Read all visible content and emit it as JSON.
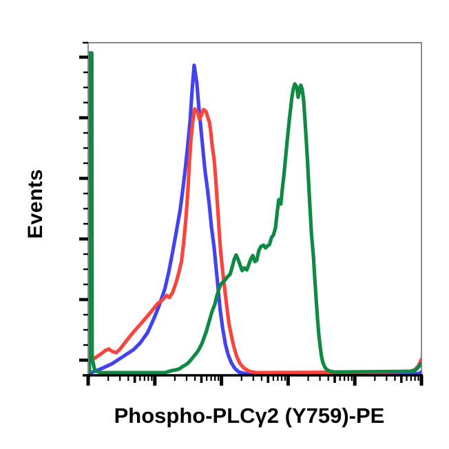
{
  "chart_data": {
    "type": "line",
    "subtype": "flow-cytometry-histogram-overlay",
    "title": "",
    "xlabel": "Phospho-PLCγ2 (Y759)-PE",
    "ylabel": "Events",
    "x_axis": {
      "scale": "log",
      "decades": 5,
      "numeric_labels_visible": false
    },
    "y_axis": {
      "scale": "linear",
      "range": [
        0,
        1
      ],
      "major_ticks": 6,
      "minors_between_majors": 3,
      "numeric_labels_visible": false
    },
    "grid": false,
    "legend_visible": false,
    "colors": {
      "frame": "#787878",
      "axis": "#000000",
      "background": "#ffffff"
    },
    "series": [
      {
        "name": "blue-curve",
        "color": "#4343ee",
        "peak": {
          "x_decade": 1.59,
          "height": 0.93
        },
        "points": [
          [
            0.02,
            0.006
          ],
          [
            0.21,
            0.021
          ],
          [
            0.36,
            0.035
          ],
          [
            0.52,
            0.056
          ],
          [
            0.68,
            0.077
          ],
          [
            0.78,
            0.097
          ],
          [
            0.89,
            0.128
          ],
          [
            0.99,
            0.172
          ],
          [
            1.06,
            0.207
          ],
          [
            1.15,
            0.259
          ],
          [
            1.21,
            0.311
          ],
          [
            1.27,
            0.373
          ],
          [
            1.32,
            0.429
          ],
          [
            1.38,
            0.497
          ],
          [
            1.42,
            0.559
          ],
          [
            1.46,
            0.625
          ],
          [
            1.5,
            0.704
          ],
          [
            1.53,
            0.766
          ],
          [
            1.56,
            0.859
          ],
          [
            1.59,
            0.932
          ],
          [
            1.63,
            0.88
          ],
          [
            1.66,
            0.807
          ],
          [
            1.69,
            0.745
          ],
          [
            1.72,
            0.683
          ],
          [
            1.75,
            0.621
          ],
          [
            1.79,
            0.559
          ],
          [
            1.82,
            0.507
          ],
          [
            1.85,
            0.445
          ],
          [
            1.89,
            0.383
          ],
          [
            1.92,
            0.321
          ],
          [
            1.95,
            0.259
          ],
          [
            1.98,
            0.197
          ],
          [
            2.02,
            0.139
          ],
          [
            2.06,
            0.093
          ],
          [
            2.1,
            0.062
          ],
          [
            2.15,
            0.037
          ],
          [
            2.2,
            0.021
          ],
          [
            2.26,
            0.01
          ],
          [
            2.34,
            0.006
          ],
          [
            2.45,
            0.004
          ],
          [
            4.9,
            0.004
          ],
          [
            4.97,
            0.006
          ],
          [
            5.0,
            0.01
          ]
        ]
      },
      {
        "name": "red-curve",
        "color": "#f9453e",
        "peak": {
          "x_decade": 1.6,
          "height": 0.8
        },
        "points": [
          [
            0.02,
            0.037
          ],
          [
            0.1,
            0.052
          ],
          [
            0.19,
            0.064
          ],
          [
            0.26,
            0.075
          ],
          [
            0.31,
            0.079
          ],
          [
            0.36,
            0.072
          ],
          [
            0.42,
            0.068
          ],
          [
            0.47,
            0.077
          ],
          [
            0.54,
            0.095
          ],
          [
            0.63,
            0.118
          ],
          [
            0.71,
            0.137
          ],
          [
            0.79,
            0.155
          ],
          [
            0.88,
            0.176
          ],
          [
            0.96,
            0.195
          ],
          [
            1.04,
            0.215
          ],
          [
            1.11,
            0.226
          ],
          [
            1.18,
            0.24
          ],
          [
            1.22,
            0.234
          ],
          [
            1.27,
            0.25
          ],
          [
            1.32,
            0.28
          ],
          [
            1.36,
            0.308
          ],
          [
            1.4,
            0.342
          ],
          [
            1.43,
            0.393
          ],
          [
            1.46,
            0.455
          ],
          [
            1.48,
            0.507
          ],
          [
            1.5,
            0.569
          ],
          [
            1.52,
            0.642
          ],
          [
            1.54,
            0.704
          ],
          [
            1.56,
            0.745
          ],
          [
            1.58,
            0.78
          ],
          [
            1.6,
            0.801
          ],
          [
            1.64,
            0.791
          ],
          [
            1.67,
            0.77
          ],
          [
            1.7,
            0.783
          ],
          [
            1.73,
            0.799
          ],
          [
            1.77,
            0.793
          ],
          [
            1.8,
            0.772
          ],
          [
            1.82,
            0.76
          ],
          [
            1.84,
            0.731
          ],
          [
            1.86,
            0.693
          ],
          [
            1.89,
            0.648
          ],
          [
            1.91,
            0.6
          ],
          [
            1.93,
            0.542
          ],
          [
            1.95,
            0.482
          ],
          [
            1.97,
            0.42
          ],
          [
            1.99,
            0.369
          ],
          [
            2.02,
            0.311
          ],
          [
            2.05,
            0.259
          ],
          [
            2.08,
            0.207
          ],
          [
            2.11,
            0.159
          ],
          [
            2.15,
            0.118
          ],
          [
            2.19,
            0.083
          ],
          [
            2.23,
            0.056
          ],
          [
            2.28,
            0.035
          ],
          [
            2.34,
            0.021
          ],
          [
            2.42,
            0.012
          ],
          [
            2.52,
            0.008
          ],
          [
            4.48,
            0.01
          ],
          [
            4.84,
            0.012
          ],
          [
            4.9,
            0.017
          ],
          [
            4.95,
            0.027
          ],
          [
            4.98,
            0.039
          ],
          [
            5.0,
            0.048
          ]
        ]
      },
      {
        "name": "green-curve",
        "color": "#0f8a44",
        "peak": {
          "x_decade": 3.1,
          "height": 0.88
        },
        "edge_spike": {
          "x_decade": 0.04,
          "height": 0.97
        },
        "points": [
          [
            0.02,
            0.0
          ],
          [
            0.02,
            0.969
          ],
          [
            0.055,
            0.969
          ],
          [
            0.06,
            0.052
          ],
          [
            0.1,
            0.014
          ],
          [
            0.19,
            0.008
          ],
          [
            1.15,
            0.008
          ],
          [
            1.25,
            0.014
          ],
          [
            1.33,
            0.017
          ],
          [
            1.38,
            0.021
          ],
          [
            1.42,
            0.027
          ],
          [
            1.46,
            0.031
          ],
          [
            1.5,
            0.037
          ],
          [
            1.54,
            0.046
          ],
          [
            1.58,
            0.056
          ],
          [
            1.63,
            0.068
          ],
          [
            1.67,
            0.081
          ],
          [
            1.71,
            0.097
          ],
          [
            1.74,
            0.114
          ],
          [
            1.77,
            0.13
          ],
          [
            1.8,
            0.151
          ],
          [
            1.83,
            0.172
          ],
          [
            1.86,
            0.193
          ],
          [
            1.9,
            0.213
          ],
          [
            1.93,
            0.238
          ],
          [
            1.96,
            0.259
          ],
          [
            1.99,
            0.273
          ],
          [
            2.03,
            0.282
          ],
          [
            2.06,
            0.288
          ],
          [
            2.09,
            0.296
          ],
          [
            2.13,
            0.304
          ],
          [
            2.16,
            0.325
          ],
          [
            2.19,
            0.348
          ],
          [
            2.22,
            0.362
          ],
          [
            2.25,
            0.348
          ],
          [
            2.28,
            0.331
          ],
          [
            2.31,
            0.315
          ],
          [
            2.34,
            0.323
          ],
          [
            2.38,
            0.317
          ],
          [
            2.41,
            0.333
          ],
          [
            2.44,
            0.35
          ],
          [
            2.47,
            0.36
          ],
          [
            2.5,
            0.342
          ],
          [
            2.53,
            0.346
          ],
          [
            2.56,
            0.375
          ],
          [
            2.59,
            0.387
          ],
          [
            2.63,
            0.391
          ],
          [
            2.66,
            0.383
          ],
          [
            2.69,
            0.389
          ],
          [
            2.72,
            0.393
          ],
          [
            2.75,
            0.414
          ],
          [
            2.78,
            0.422
          ],
          [
            2.81,
            0.443
          ],
          [
            2.84,
            0.497
          ],
          [
            2.86,
            0.528
          ],
          [
            2.89,
            0.515
          ],
          [
            2.91,
            0.555
          ],
          [
            2.94,
            0.609
          ],
          [
            2.96,
            0.65
          ],
          [
            2.98,
            0.694
          ],
          [
            3.0,
            0.733
          ],
          [
            3.02,
            0.772
          ],
          [
            3.04,
            0.807
          ],
          [
            3.06,
            0.841
          ],
          [
            3.08,
            0.863
          ],
          [
            3.1,
            0.876
          ],
          [
            3.13,
            0.867
          ],
          [
            3.15,
            0.836
          ],
          [
            3.17,
            0.857
          ],
          [
            3.19,
            0.872
          ],
          [
            3.21,
            0.861
          ],
          [
            3.23,
            0.832
          ],
          [
            3.25,
            0.776
          ],
          [
            3.27,
            0.714
          ],
          [
            3.29,
            0.646
          ],
          [
            3.31,
            0.569
          ],
          [
            3.33,
            0.497
          ],
          [
            3.35,
            0.424
          ],
          [
            3.38,
            0.356
          ],
          [
            3.4,
            0.29
          ],
          [
            3.42,
            0.228
          ],
          [
            3.44,
            0.172
          ],
          [
            3.46,
            0.124
          ],
          [
            3.48,
            0.087
          ],
          [
            3.5,
            0.058
          ],
          [
            3.52,
            0.039
          ],
          [
            3.55,
            0.025
          ],
          [
            3.58,
            0.017
          ],
          [
            3.63,
            0.012
          ],
          [
            3.7,
            0.01
          ],
          [
            4.84,
            0.012
          ],
          [
            4.9,
            0.014
          ],
          [
            4.94,
            0.021
          ],
          [
            4.97,
            0.029
          ],
          [
            5.0,
            0.037
          ]
        ]
      }
    ]
  }
}
